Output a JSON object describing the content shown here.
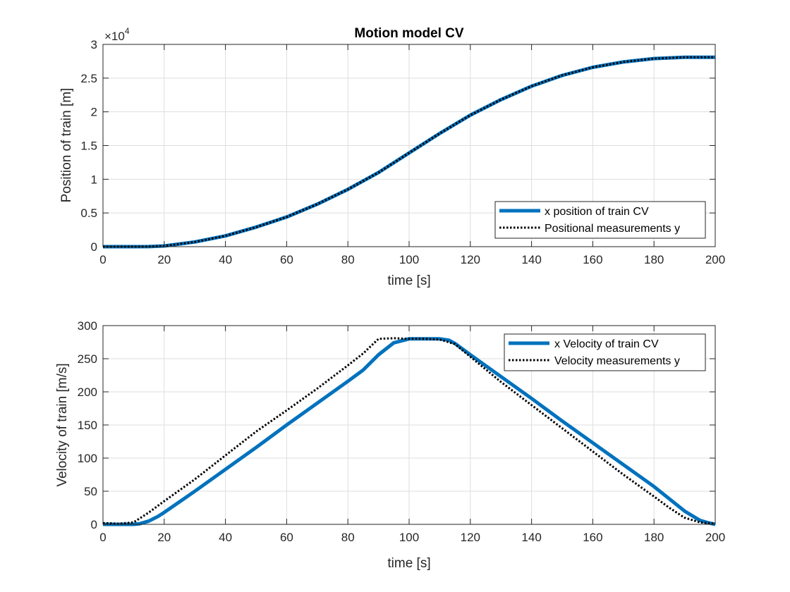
{
  "figure": {
    "title": "Motion model CV"
  },
  "colors": {
    "truth": "#0072BD",
    "measurement": "#000000",
    "grid": "#dedede",
    "axis": "#262626"
  },
  "chart_data": [
    {
      "type": "line",
      "title": "Motion model CV",
      "xlabel": "time [s]",
      "ylabel": "Position of train [m]",
      "xlim": [
        0,
        200
      ],
      "ylim": [
        0,
        30000
      ],
      "xticks": [
        0,
        20,
        40,
        60,
        80,
        100,
        120,
        140,
        160,
        180,
        200
      ],
      "xtick_labels": [
        "0",
        "20",
        "40",
        "60",
        "80",
        "100",
        "120",
        "140",
        "160",
        "180",
        "200"
      ],
      "yticks": [
        0,
        5000,
        10000,
        15000,
        20000,
        25000,
        30000
      ],
      "ytick_labels": [
        "0",
        "0.5",
        "1",
        "1.5",
        "2",
        "2.5",
        "3"
      ],
      "y_exponent": {
        "base": "×10",
        "power": "4"
      },
      "grid": true,
      "legend_position": "bottom-right",
      "series": [
        {
          "name": "x position of train CV",
          "style": "solid-thick",
          "x": [
            0,
            10,
            15,
            20,
            30,
            40,
            50,
            60,
            70,
            80,
            90,
            100,
            110,
            120,
            130,
            140,
            150,
            160,
            170,
            180,
            190,
            200
          ],
          "y": [
            0,
            0,
            10,
            100,
            700,
            1600,
            2900,
            4400,
            6300,
            8500,
            11000,
            13900,
            16800,
            19500,
            21800,
            23800,
            25400,
            26600,
            27400,
            27900,
            28100,
            28100
          ]
        },
        {
          "name": "Positional measurements y",
          "style": "dotted",
          "x": [
            0,
            10,
            15,
            20,
            30,
            40,
            50,
            60,
            70,
            80,
            90,
            100,
            110,
            120,
            130,
            140,
            150,
            160,
            170,
            180,
            190,
            200
          ],
          "y": [
            0,
            0,
            10,
            100,
            700,
            1600,
            2900,
            4400,
            6300,
            8500,
            11000,
            13900,
            16800,
            19500,
            21800,
            23800,
            25400,
            26600,
            27400,
            27900,
            28100,
            28100
          ]
        }
      ]
    },
    {
      "type": "line",
      "title": "",
      "xlabel": "time [s]",
      "ylabel": "Velocity of train [m/s]",
      "xlim": [
        0,
        200
      ],
      "ylim": [
        0,
        300
      ],
      "xticks": [
        0,
        20,
        40,
        60,
        80,
        100,
        120,
        140,
        160,
        180,
        200
      ],
      "xtick_labels": [
        "0",
        "20",
        "40",
        "60",
        "80",
        "100",
        "120",
        "140",
        "160",
        "180",
        "200"
      ],
      "yticks": [
        0,
        50,
        100,
        150,
        200,
        250,
        300
      ],
      "ytick_labels": [
        "0",
        "50",
        "100",
        "150",
        "200",
        "250",
        "300"
      ],
      "grid": true,
      "legend_position": "top-right",
      "series": [
        {
          "name": "x Velocity of train CV",
          "style": "solid-thick",
          "x": [
            0,
            10,
            12,
            15,
            18,
            20,
            30,
            40,
            50,
            60,
            70,
            80,
            85,
            90,
            95,
            100,
            105,
            110,
            113,
            115,
            120,
            130,
            140,
            150,
            160,
            170,
            180,
            190,
            195,
            198,
            200
          ],
          "y": [
            0,
            0,
            1,
            5,
            12,
            18,
            50,
            83,
            116,
            150,
            183,
            216,
            233,
            256,
            274,
            280,
            280,
            280,
            278,
            273,
            256,
            223,
            190,
            156,
            123,
            90,
            57,
            20,
            6,
            2,
            0
          ]
        },
        {
          "name": "Velocity measurements y",
          "style": "dotted",
          "x": [
            0,
            5,
            10,
            15,
            20,
            30,
            40,
            50,
            60,
            70,
            80,
            85,
            90,
            95,
            100,
            105,
            110,
            115,
            120,
            130,
            140,
            150,
            160,
            170,
            180,
            185,
            190,
            195,
            200
          ],
          "y": [
            2,
            1,
            3,
            18,
            35,
            68,
            104,
            140,
            172,
            205,
            240,
            258,
            280,
            281,
            280,
            280,
            279,
            272,
            253,
            215,
            180,
            145,
            110,
            75,
            42,
            25,
            10,
            3,
            1
          ]
        }
      ]
    }
  ]
}
